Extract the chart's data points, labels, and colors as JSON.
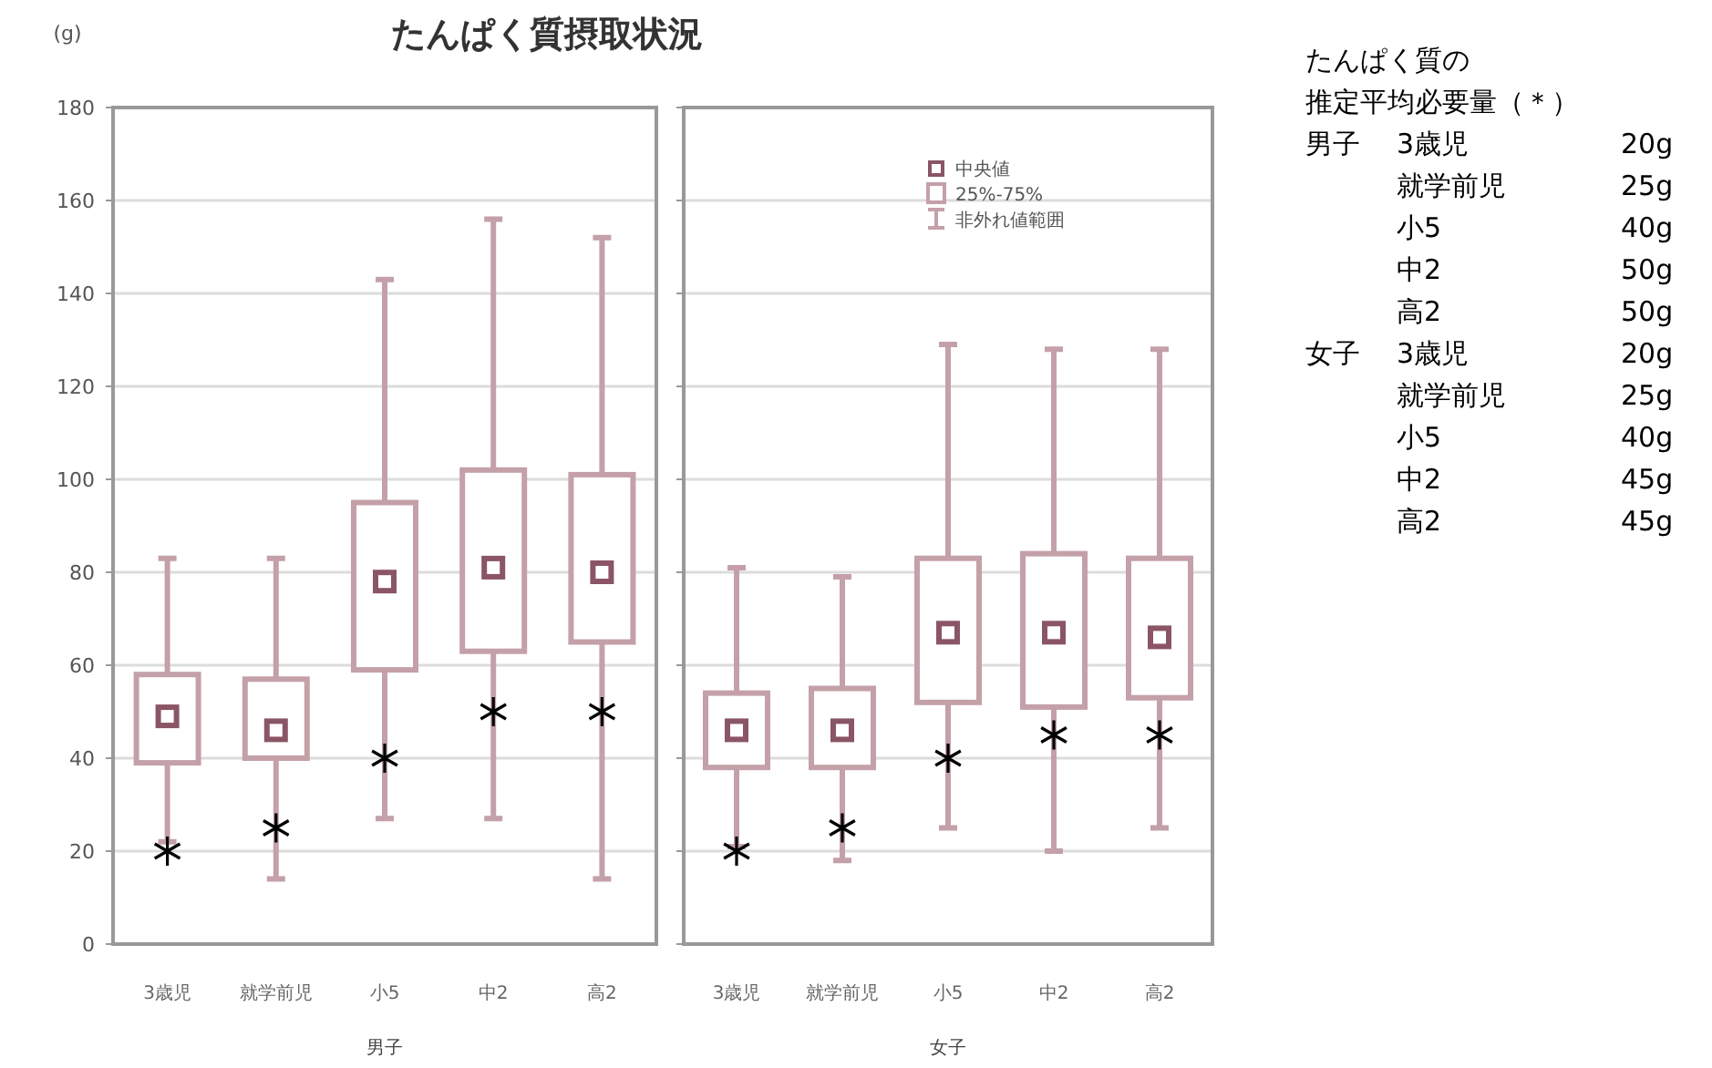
{
  "chart_data": [
    {
      "type": "box",
      "title": "たんぱく質摂取状況",
      "ylabel": "(g)",
      "xlabel": "男子",
      "categories": [
        "3歳児",
        "就学前児",
        "小5",
        "中2",
        "高2"
      ],
      "ylim": [
        0,
        180
      ],
      "yticks": [
        0,
        20,
        40,
        60,
        80,
        100,
        120,
        140,
        160,
        180
      ],
      "grid": "y",
      "series": [
        {
          "type": "box",
          "color": "#c4a0a8",
          "boxes": [
            {
              "low": 22,
              "q1": 39,
              "median": 49,
              "q3": 58,
              "high": 83
            },
            {
              "low": 14,
              "q1": 40,
              "median": 46,
              "q3": 57,
              "high": 83
            },
            {
              "low": 27,
              "q1": 59,
              "median": 78,
              "q3": 95,
              "high": 143
            },
            {
              "low": 27,
              "q1": 63,
              "median": 81,
              "q3": 102,
              "high": 156
            },
            {
              "low": 14,
              "q1": 65,
              "median": 80,
              "q3": 101,
              "high": 152
            }
          ]
        },
        {
          "type": "scatter",
          "marker": "cross",
          "color": "#000000",
          "x": [
            "3歳児",
            "就学前児",
            "小5",
            "中2",
            "高2"
          ],
          "values": [
            20,
            25,
            40,
            50,
            50
          ]
        }
      ]
    },
    {
      "type": "box",
      "xlabel": "女子",
      "categories": [
        "3歳児",
        "就学前児",
        "小5",
        "中2",
        "高2"
      ],
      "ylim": [
        0,
        180
      ],
      "yticks": [
        0,
        20,
        40,
        60,
        80,
        100,
        120,
        140,
        160,
        180
      ],
      "grid": "y",
      "tick_labels": "x",
      "annotations": [
        "中央値",
        "25%-75%",
        "非外れ値範囲"
      ],
      "series": [
        {
          "type": "box",
          "color": "#c4a0a8",
          "boxes": [
            {
              "low": 21,
              "q1": 38,
              "median": 46,
              "q3": 54,
              "high": 81
            },
            {
              "low": 18,
              "q1": 38,
              "median": 46,
              "q3": 55,
              "high": 79
            },
            {
              "low": 25,
              "q1": 52,
              "median": 67,
              "q3": 83,
              "high": 129
            },
            {
              "low": 20,
              "q1": 51,
              "median": 67,
              "q3": 84,
              "high": 128
            },
            {
              "low": 25,
              "q1": 53,
              "median": 66,
              "q3": 83,
              "high": 128
            }
          ]
        },
        {
          "type": "scatter",
          "marker": "cross",
          "color": "#000000",
          "x": [
            "3歳児",
            "就学前児",
            "小5",
            "中2",
            "高2"
          ],
          "values": [
            20,
            25,
            40,
            45,
            45
          ]
        }
      ]
    },
    {
      "type": "other",
      "annotations": [
        "たんぱく質の",
        "推定平均必要量（＊）",
        "男子",
        "3歳児",
        "20g",
        "就学前児",
        "25g",
        "小5",
        "40g",
        "中2",
        "50g",
        "高2",
        "50g",
        "女子",
        "3歳児",
        "20g",
        "就学前児",
        "25g",
        "小5",
        "40g",
        "中2",
        "45g",
        "高2",
        "45g"
      ]
    }
  ]
}
